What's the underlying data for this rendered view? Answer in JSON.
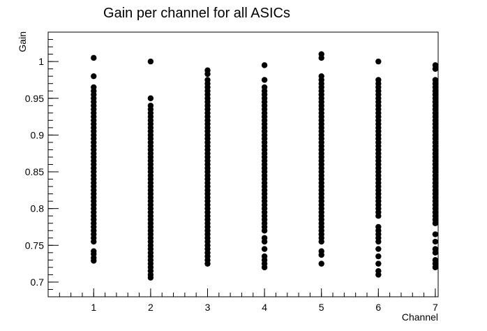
{
  "chart_data": {
    "type": "scatter",
    "title": "Gain per channel for all ASICs",
    "xlabel": "Channel",
    "ylabel": "Gain",
    "xlim": [
      0.2,
      7.05
    ],
    "ylim": [
      0.68,
      1.04
    ],
    "x_ticks": [
      1,
      2,
      3,
      4,
      5,
      6,
      7
    ],
    "y_ticks": [
      0.7,
      0.75,
      0.8,
      0.85,
      0.9,
      0.95,
      1
    ],
    "y_tick_labels": [
      "0.7",
      "0.75",
      "0.8",
      "0.85",
      "0.9",
      "0.95",
      "1"
    ],
    "grid": false,
    "legend": "none",
    "marker_color": "#000000",
    "series": [
      {
        "x": 1,
        "y": [
          1.005,
          0.98,
          0.965,
          0.96,
          0.955,
          0.95,
          0.945,
          0.94,
          0.935,
          0.93,
          0.925,
          0.92,
          0.915,
          0.91,
          0.905,
          0.9,
          0.895,
          0.89,
          0.885,
          0.88,
          0.875,
          0.87,
          0.865,
          0.86,
          0.855,
          0.85,
          0.845,
          0.84,
          0.835,
          0.83,
          0.825,
          0.82,
          0.815,
          0.81,
          0.805,
          0.8,
          0.795,
          0.79,
          0.785,
          0.78,
          0.775,
          0.77,
          0.765,
          0.76,
          0.755,
          0.742,
          0.738,
          0.733,
          0.729
        ]
      },
      {
        "x": 2,
        "y": [
          1.0,
          0.95,
          0.94,
          0.935,
          0.93,
          0.925,
          0.92,
          0.915,
          0.91,
          0.905,
          0.9,
          0.895,
          0.89,
          0.885,
          0.88,
          0.875,
          0.87,
          0.865,
          0.86,
          0.855,
          0.85,
          0.845,
          0.84,
          0.835,
          0.83,
          0.825,
          0.82,
          0.815,
          0.81,
          0.805,
          0.8,
          0.795,
          0.79,
          0.785,
          0.78,
          0.775,
          0.77,
          0.765,
          0.76,
          0.755,
          0.75,
          0.745,
          0.74,
          0.735,
          0.73,
          0.725,
          0.72,
          0.715,
          0.71,
          0.706
        ]
      },
      {
        "x": 3,
        "y": [
          0.988,
          0.983,
          0.975,
          0.97,
          0.965,
          0.96,
          0.955,
          0.95,
          0.945,
          0.94,
          0.935,
          0.93,
          0.925,
          0.92,
          0.915,
          0.91,
          0.905,
          0.9,
          0.895,
          0.89,
          0.885,
          0.88,
          0.875,
          0.87,
          0.865,
          0.86,
          0.855,
          0.85,
          0.845,
          0.84,
          0.835,
          0.83,
          0.825,
          0.82,
          0.815,
          0.81,
          0.805,
          0.8,
          0.795,
          0.79,
          0.785,
          0.78,
          0.775,
          0.77,
          0.765,
          0.76,
          0.755,
          0.75,
          0.745,
          0.74,
          0.735,
          0.73,
          0.725
        ]
      },
      {
        "x": 4,
        "y": [
          0.995,
          0.975,
          0.965,
          0.96,
          0.955,
          0.95,
          0.945,
          0.94,
          0.935,
          0.93,
          0.925,
          0.92,
          0.915,
          0.91,
          0.905,
          0.9,
          0.895,
          0.89,
          0.885,
          0.88,
          0.875,
          0.87,
          0.865,
          0.86,
          0.855,
          0.85,
          0.845,
          0.84,
          0.835,
          0.83,
          0.825,
          0.82,
          0.815,
          0.81,
          0.805,
          0.8,
          0.795,
          0.79,
          0.785,
          0.78,
          0.775,
          0.77,
          0.76,
          0.755,
          0.745,
          0.735,
          0.73,
          0.725,
          0.72
        ]
      },
      {
        "x": 5,
        "y": [
          1.01,
          1.005,
          0.98,
          0.975,
          0.97,
          0.965,
          0.96,
          0.955,
          0.95,
          0.945,
          0.94,
          0.935,
          0.93,
          0.925,
          0.92,
          0.915,
          0.91,
          0.905,
          0.9,
          0.895,
          0.89,
          0.885,
          0.88,
          0.875,
          0.87,
          0.865,
          0.86,
          0.855,
          0.85,
          0.845,
          0.84,
          0.835,
          0.83,
          0.825,
          0.82,
          0.815,
          0.81,
          0.805,
          0.8,
          0.795,
          0.79,
          0.785,
          0.78,
          0.775,
          0.77,
          0.765,
          0.76,
          0.755,
          0.742,
          0.737,
          0.725
        ]
      },
      {
        "x": 6,
        "y": [
          1.0,
          0.975,
          0.97,
          0.965,
          0.96,
          0.955,
          0.95,
          0.945,
          0.94,
          0.935,
          0.93,
          0.925,
          0.92,
          0.915,
          0.91,
          0.905,
          0.9,
          0.895,
          0.89,
          0.885,
          0.88,
          0.875,
          0.87,
          0.865,
          0.86,
          0.855,
          0.85,
          0.845,
          0.84,
          0.835,
          0.83,
          0.825,
          0.82,
          0.815,
          0.81,
          0.805,
          0.8,
          0.795,
          0.79,
          0.775,
          0.77,
          0.765,
          0.76,
          0.755,
          0.745,
          0.735,
          0.725,
          0.715,
          0.71
        ]
      },
      {
        "x": 7,
        "y": [
          0.995,
          0.99,
          0.975,
          0.97,
          0.965,
          0.96,
          0.955,
          0.95,
          0.945,
          0.94,
          0.935,
          0.93,
          0.925,
          0.92,
          0.915,
          0.91,
          0.905,
          0.9,
          0.895,
          0.89,
          0.885,
          0.88,
          0.875,
          0.87,
          0.865,
          0.86,
          0.855,
          0.85,
          0.845,
          0.84,
          0.835,
          0.83,
          0.825,
          0.82,
          0.815,
          0.81,
          0.805,
          0.8,
          0.795,
          0.79,
          0.785,
          0.78,
          0.765,
          0.755,
          0.745,
          0.74,
          0.73,
          0.725,
          0.72
        ]
      }
    ]
  }
}
